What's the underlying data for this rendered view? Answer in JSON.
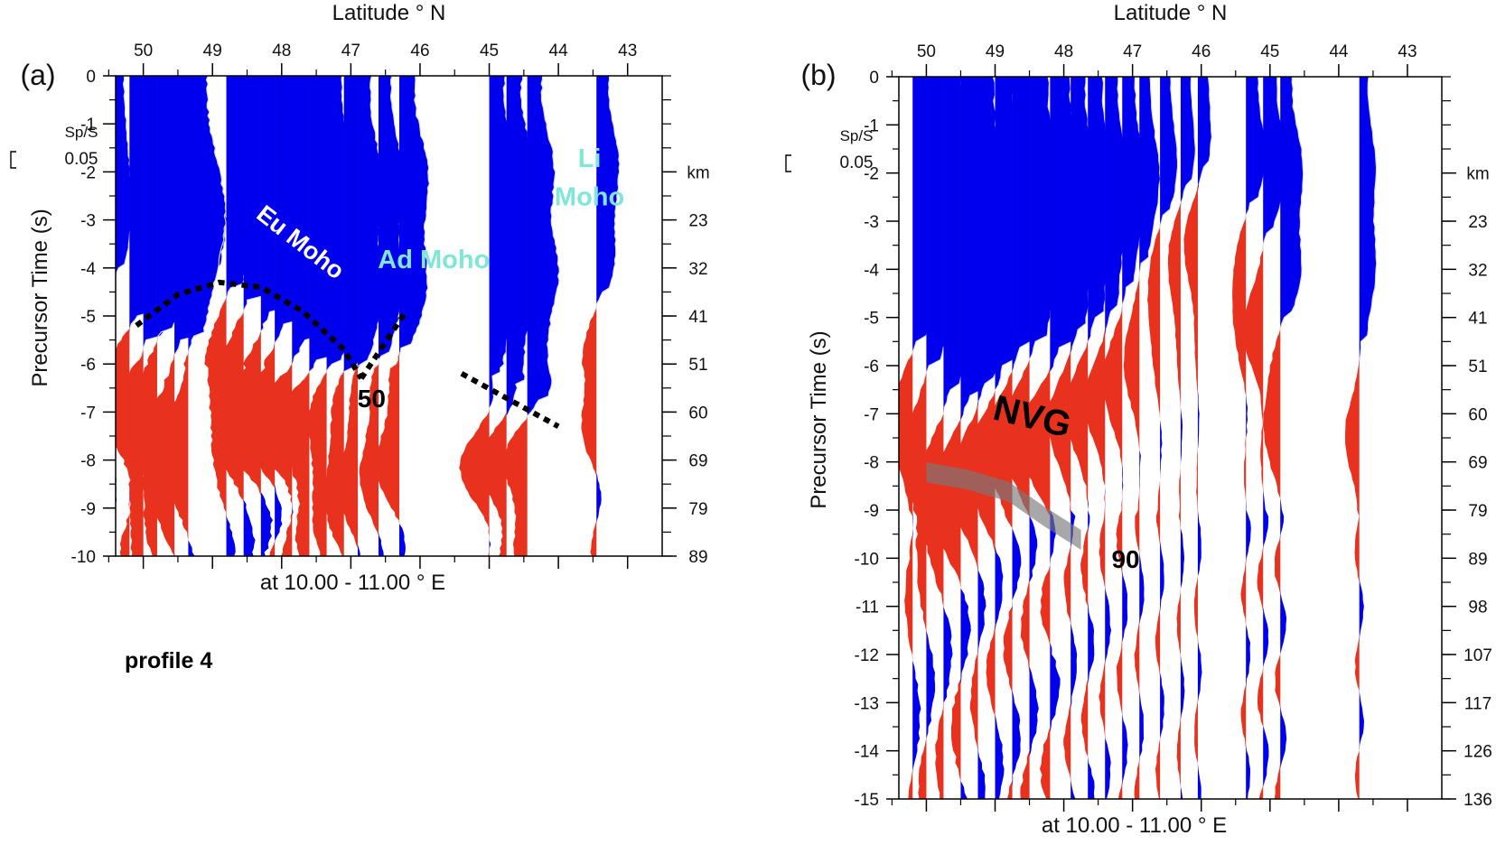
{
  "colors": {
    "positive": "#0000ee",
    "negative": "#e8321e",
    "moho_line": "#000000",
    "trace_line": "#dddddd",
    "cyan_label": "#7fe6d8"
  },
  "chart_data": [
    {
      "type": "area",
      "panel_label": "(a)",
      "top_axis_title": "Latitude ° N",
      "bottom_axis_title": "at 10.00 - 11.00 ° E",
      "ylabel": "Precursor Time (s)",
      "right_axis_unit": "km",
      "lat_ticks": [
        "50",
        "49",
        "48",
        "47",
        "46",
        "45",
        "44",
        "43"
      ],
      "lat_range": [
        50.4,
        42.5
      ],
      "ylim": [
        0,
        -10
      ],
      "time_ticks": [
        "0",
        "-1",
        "-2",
        "-3",
        "-4",
        "-5",
        "-6",
        "-7",
        "-8",
        "-9",
        "-10"
      ],
      "depth_ticks": [
        {
          "t": -2,
          "label": ""
        },
        {
          "t": -3,
          "label": "23"
        },
        {
          "t": -4,
          "label": "32"
        },
        {
          "t": -5,
          "label": "41"
        },
        {
          "t": -6,
          "label": "51"
        },
        {
          "t": -7,
          "label": "60"
        },
        {
          "t": -8,
          "label": "69"
        },
        {
          "t": -9,
          "label": "79"
        },
        {
          "t": -10,
          "label": "89"
        }
      ],
      "scale": {
        "label": "Sp/S",
        "value": "0.05"
      },
      "traces": [
        {
          "lat": 50.45,
          "moho": -4.0,
          "amp": 0.4
        },
        {
          "lat": 50.2,
          "moho": -5.0,
          "amp": 0.9
        },
        {
          "lat": 50.0,
          "moho": -5.5,
          "amp": 0.9
        },
        {
          "lat": 49.8,
          "moho": -5.3,
          "amp": 0.8
        },
        {
          "lat": 49.55,
          "moho": -5.5,
          "amp": 1.0
        },
        {
          "lat": 49.35,
          "moho": -5.4,
          "amp": 0.7
        },
        {
          "lat": 48.8,
          "moho": -4.4,
          "amp": 0.7
        },
        {
          "lat": 48.55,
          "moho": -4.6,
          "amp": 0.9
        },
        {
          "lat": 48.3,
          "moho": -4.9,
          "amp": 1.0
        },
        {
          "lat": 48.1,
          "moho": -5.1,
          "amp": 0.9
        },
        {
          "lat": 47.85,
          "moho": -5.5,
          "amp": 0.9
        },
        {
          "lat": 47.6,
          "moho": -5.9,
          "amp": 0.8
        },
        {
          "lat": 47.35,
          "moho": -6.0,
          "amp": 0.6
        },
        {
          "lat": 47.1,
          "moho": -6.1,
          "amp": 0.6
        },
        {
          "lat": 46.9,
          "moho": -6.0,
          "amp": 0.5
        },
        {
          "lat": 46.6,
          "moho": -5.8,
          "amp": 0.5
        },
        {
          "lat": 46.3,
          "moho": -5.6,
          "amp": 0.6
        },
        {
          "lat": 45.0,
          "moho": -6.2,
          "amp": 0.6
        },
        {
          "lat": 44.75,
          "moho": -6.4,
          "amp": 0.6
        },
        {
          "lat": 44.45,
          "moho": -6.7,
          "amp": 0.6
        },
        {
          "lat": 43.45,
          "moho": -4.5,
          "amp": 0.45
        }
      ],
      "annotations": [
        {
          "text": "Eu Moho",
          "lat": 47.8,
          "t": -3.6,
          "rotate": 38,
          "style": "white"
        },
        {
          "text": "Ad Moho",
          "lat": 45.8,
          "t": -4.0,
          "rotate": 0,
          "style": "cyan"
        },
        {
          "text": "Li",
          "lat": 43.55,
          "t": -1.9,
          "rotate": 0,
          "style": "cyan"
        },
        {
          "text": "Moho",
          "lat": 43.55,
          "t": -2.7,
          "rotate": 0,
          "style": "cyan"
        },
        {
          "text": "50",
          "lat": 46.7,
          "t": -6.9,
          "rotate": 0,
          "style": "black"
        }
      ],
      "moho_lines": [
        {
          "lat": [
            50.1,
            49.5,
            48.9,
            48.3,
            47.7,
            47.1,
            46.85
          ],
          "t": [
            -5.2,
            -4.55,
            -4.3,
            -4.4,
            -4.9,
            -5.7,
            -6.3
          ]
        },
        {
          "lat": [
            46.85,
            46.2
          ],
          "t": [
            -6.3,
            -4.9
          ]
        },
        {
          "lat": [
            45.4,
            44.0
          ],
          "t": [
            -6.2,
            -7.3
          ]
        }
      ],
      "note": "profile 4"
    },
    {
      "type": "area",
      "panel_label": "(b)",
      "top_axis_title": "Latitude ° N",
      "bottom_axis_title": "at 10.00 - 11.00 ° E",
      "ylabel": "Precursor Time (s)",
      "right_axis_unit": "km",
      "lat_ticks": [
        "50",
        "49",
        "48",
        "47",
        "46",
        "45",
        "44",
        "43"
      ],
      "lat_range": [
        50.4,
        42.5
      ],
      "ylim": [
        0,
        -15
      ],
      "time_ticks": [
        "0",
        "-1",
        "-2",
        "-3",
        "-4",
        "-5",
        "-6",
        "-7",
        "-8",
        "-9",
        "-10",
        "-11",
        "-12",
        "-13",
        "-14",
        "-15"
      ],
      "depth_ticks": [
        {
          "t": -2,
          "label": ""
        },
        {
          "t": -3,
          "label": "23"
        },
        {
          "t": -4,
          "label": "32"
        },
        {
          "t": -5,
          "label": "41"
        },
        {
          "t": -6,
          "label": "51"
        },
        {
          "t": -7,
          "label": "60"
        },
        {
          "t": -8,
          "label": "69"
        },
        {
          "t": -9,
          "label": "79"
        },
        {
          "t": -10,
          "label": "89"
        },
        {
          "t": -11,
          "label": "98"
        },
        {
          "t": -12,
          "label": "107"
        },
        {
          "t": -13,
          "label": "117"
        },
        {
          "t": -14,
          "label": "126"
        },
        {
          "t": -15,
          "label": "136"
        }
      ],
      "scale": {
        "label": "Sp/S",
        "value": "0.05"
      },
      "traces": [
        {
          "lat": 50.2,
          "moho": -5.5,
          "amp": 0.8
        },
        {
          "lat": 50.0,
          "moho": -6.0,
          "amp": 0.9
        },
        {
          "lat": 49.75,
          "moho": -6.5,
          "amp": 0.9
        },
        {
          "lat": 49.5,
          "moho": -6.6,
          "amp": 1.0
        },
        {
          "lat": 49.25,
          "moho": -6.3,
          "amp": 0.8
        },
        {
          "lat": 49.0,
          "moho": -6.0,
          "amp": 0.9
        },
        {
          "lat": 48.75,
          "moho": -5.6,
          "amp": 0.9
        },
        {
          "lat": 48.5,
          "moho": -5.4,
          "amp": 0.9
        },
        {
          "lat": 48.2,
          "moho": -5.6,
          "amp": 1.0
        },
        {
          "lat": 47.9,
          "moho": -5.2,
          "amp": 0.7
        },
        {
          "lat": 47.65,
          "moho": -5.0,
          "amp": 0.7
        },
        {
          "lat": 47.4,
          "moho": -4.8,
          "amp": 0.6
        },
        {
          "lat": 47.15,
          "moho": -4.3,
          "amp": 0.6
        },
        {
          "lat": 46.9,
          "moho": -3.8,
          "amp": 0.5
        },
        {
          "lat": 46.6,
          "moho": -2.8,
          "amp": 0.45
        },
        {
          "lat": 46.3,
          "moho": -2.2,
          "amp": 0.4
        },
        {
          "lat": 46.05,
          "moho": -1.8,
          "amp": 0.4
        },
        {
          "lat": 45.35,
          "moho": -2.6,
          "amp": 0.5
        },
        {
          "lat": 45.1,
          "moho": -3.2,
          "amp": 0.6
        },
        {
          "lat": 44.85,
          "moho": -5.0,
          "amp": 0.6
        },
        {
          "lat": 43.7,
          "moho": -5.5,
          "amp": 0.45
        }
      ],
      "annotations": [
        {
          "text": "NVG",
          "lat": 48.5,
          "t": -7.3,
          "rotate": 14,
          "style": "big"
        },
        {
          "text": "90",
          "lat": 47.1,
          "t": -10.2,
          "rotate": 0,
          "style": "black"
        }
      ],
      "shaded_band": {
        "lat": [
          50.0,
          49.4,
          48.8,
          48.3,
          47.75
        ],
        "t": [
          -8.2,
          -8.35,
          -8.6,
          -9.1,
          -9.6
        ]
      }
    }
  ]
}
